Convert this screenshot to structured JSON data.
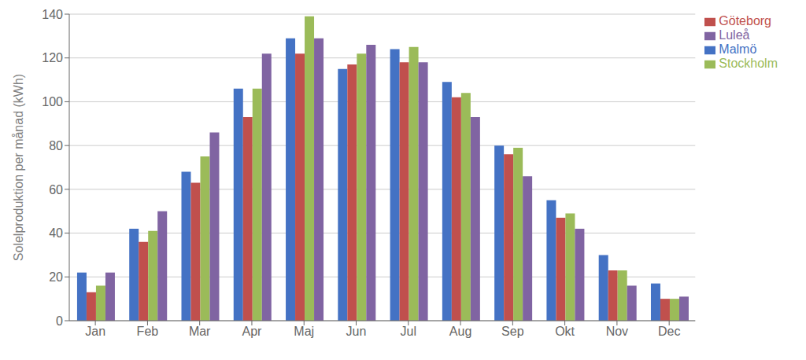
{
  "chart_data": {
    "type": "bar",
    "ylabel": "Solelproduktion per månad (kWh)",
    "categories": [
      "Jan",
      "Feb",
      "Mar",
      "Apr",
      "Maj",
      "Jun",
      "Jul",
      "Aug",
      "Sep",
      "Okt",
      "Nov",
      "Dec"
    ],
    "series": [
      {
        "name": "Malmö",
        "color": "#4472C4",
        "values": [
          22,
          42,
          68,
          106,
          129,
          115,
          124,
          109,
          80,
          55,
          30,
          17
        ]
      },
      {
        "name": "Göteborg",
        "color": "#C0504D",
        "values": [
          13,
          36,
          63,
          93,
          122,
          117,
          118,
          102,
          76,
          47,
          23,
          10
        ]
      },
      {
        "name": "Stockholm",
        "color": "#9BBB59",
        "values": [
          16,
          41,
          75,
          106,
          139,
          122,
          125,
          104,
          79,
          49,
          23,
          10
        ]
      },
      {
        "name": "Luleå",
        "color": "#8064A2",
        "values": [
          22,
          50,
          86,
          122,
          129,
          126,
          118,
          93,
          66,
          42,
          16,
          11
        ]
      }
    ],
    "ylim": [
      0,
      140
    ],
    "yticks": [
      0,
      20,
      40,
      60,
      80,
      100,
      120,
      140
    ],
    "grid": true,
    "legend": "upper right"
  }
}
